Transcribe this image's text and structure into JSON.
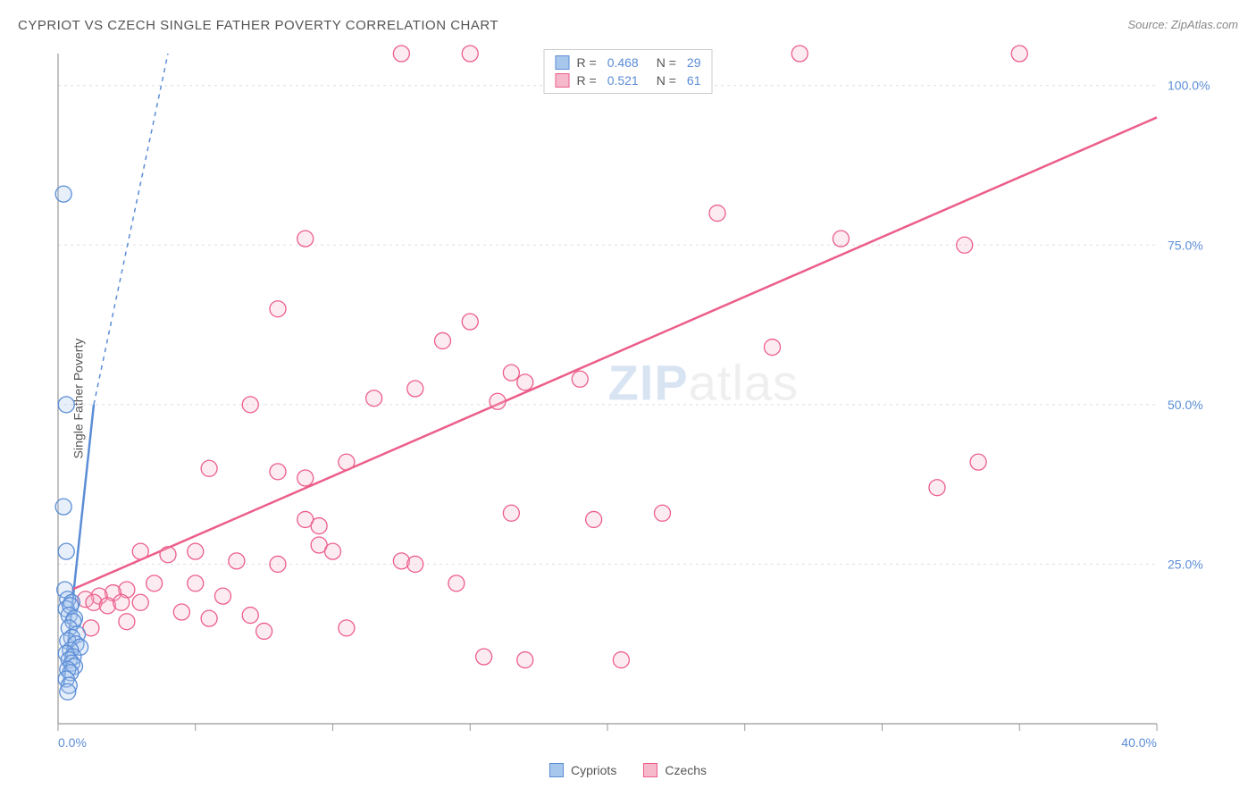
{
  "title": "CYPRIOT VS CZECH SINGLE FATHER POVERTY CORRELATION CHART",
  "source": "Source: ZipAtlas.com",
  "ylabel": "Single Father Poverty",
  "watermark_zip": "ZIP",
  "watermark_atlas": "atlas",
  "chart": {
    "type": "scatter",
    "background_color": "#ffffff",
    "grid_color": "#dddddd",
    "axis_color": "#999999",
    "tick_label_color": "#5b8dd6",
    "xlim": [
      0,
      40
    ],
    "ylim": [
      0,
      105
    ],
    "xticks": [
      0,
      5,
      10,
      15,
      20,
      25,
      30,
      35,
      40
    ],
    "xtick_labels": {
      "0": "0.0%",
      "40": "40.0%"
    },
    "ygrid": [
      25,
      50,
      75,
      100
    ],
    "ytick_labels": {
      "25": "25.0%",
      "50": "50.0%",
      "75": "75.0%",
      "100": "100.0%"
    },
    "marker_radius": 9,
    "marker_fill_opacity": 0.28,
    "marker_stroke_width": 1.3
  },
  "series": {
    "cypriots": {
      "label": "Cypriots",
      "r_value": "0.468",
      "n_value": "29",
      "color_stroke": "#5b8dd6",
      "color_fill": "#a8c7ec",
      "trend": {
        "x1": 0.2,
        "y1": 6,
        "x2": 1.3,
        "y2": 50,
        "dash_x2": 4.0,
        "dash_y2": 155
      },
      "points": [
        [
          0.2,
          83
        ],
        [
          0.3,
          50
        ],
        [
          0.2,
          34
        ],
        [
          0.3,
          27
        ],
        [
          0.25,
          21
        ],
        [
          0.35,
          19.5
        ],
        [
          0.5,
          19
        ],
        [
          0.3,
          18
        ],
        [
          0.45,
          18.5
        ],
        [
          0.4,
          17
        ],
        [
          0.6,
          16.5
        ],
        [
          0.55,
          16
        ],
        [
          0.4,
          15
        ],
        [
          0.7,
          14
        ],
        [
          0.5,
          13.5
        ],
        [
          0.35,
          13
        ],
        [
          0.65,
          12.5
        ],
        [
          0.8,
          12
        ],
        [
          0.45,
          11.5
        ],
        [
          0.3,
          11
        ],
        [
          0.55,
          10.5
        ],
        [
          0.4,
          10
        ],
        [
          0.5,
          9.5
        ],
        [
          0.6,
          9
        ],
        [
          0.35,
          8.5
        ],
        [
          0.45,
          8
        ],
        [
          0.3,
          7
        ],
        [
          0.4,
          6
        ],
        [
          0.35,
          5
        ]
      ]
    },
    "czechs": {
      "label": "Czechs",
      "r_value": "0.521",
      "n_value": "61",
      "color_stroke": "#ec5e8a",
      "color_fill": "#f6b8cb",
      "trend": {
        "x1": 0.5,
        "y1": 21,
        "x2": 40,
        "y2": 95
      },
      "points": [
        [
          12.5,
          105
        ],
        [
          15,
          105
        ],
        [
          27,
          105
        ],
        [
          35,
          105
        ],
        [
          24,
          80
        ],
        [
          28.5,
          76
        ],
        [
          33,
          75
        ],
        [
          9,
          76
        ],
        [
          8,
          65
        ],
        [
          15,
          63
        ],
        [
          14,
          60
        ],
        [
          26,
          59
        ],
        [
          16.5,
          55
        ],
        [
          17,
          53.5
        ],
        [
          19,
          54
        ],
        [
          16,
          50.5
        ],
        [
          13,
          52.5
        ],
        [
          11.5,
          51
        ],
        [
          7,
          50
        ],
        [
          33.5,
          41
        ],
        [
          32,
          37
        ],
        [
          5.5,
          40
        ],
        [
          8,
          39.5
        ],
        [
          9,
          38.5
        ],
        [
          10.5,
          41
        ],
        [
          22,
          33
        ],
        [
          9,
          32
        ],
        [
          9.5,
          31
        ],
        [
          16.5,
          33
        ],
        [
          19.5,
          32
        ],
        [
          9.5,
          28
        ],
        [
          10,
          27
        ],
        [
          3,
          27
        ],
        [
          5,
          27
        ],
        [
          4,
          26.5
        ],
        [
          6.5,
          25.5
        ],
        [
          8,
          25
        ],
        [
          12.5,
          25.5
        ],
        [
          14.5,
          22
        ],
        [
          3.5,
          22
        ],
        [
          5,
          22
        ],
        [
          2.5,
          21
        ],
        [
          2,
          20.5
        ],
        [
          1.5,
          20
        ],
        [
          1,
          19.5
        ],
        [
          1.3,
          19
        ],
        [
          1.8,
          18.5
        ],
        [
          2.3,
          19
        ],
        [
          5.5,
          16.5
        ],
        [
          7,
          17
        ],
        [
          7.5,
          14.5
        ],
        [
          4.5,
          17.5
        ],
        [
          3,
          19
        ],
        [
          10.5,
          15
        ],
        [
          2.5,
          16
        ],
        [
          1.2,
          15
        ],
        [
          15.5,
          10.5
        ],
        [
          17,
          10
        ],
        [
          20.5,
          10
        ],
        [
          13,
          25
        ],
        [
          6,
          20
        ]
      ]
    }
  },
  "legend_top": {
    "r_label": "R =",
    "n_label": "N ="
  },
  "legend_bottom": {
    "cypriots": "Cypriots",
    "czechs": "Czechs"
  }
}
